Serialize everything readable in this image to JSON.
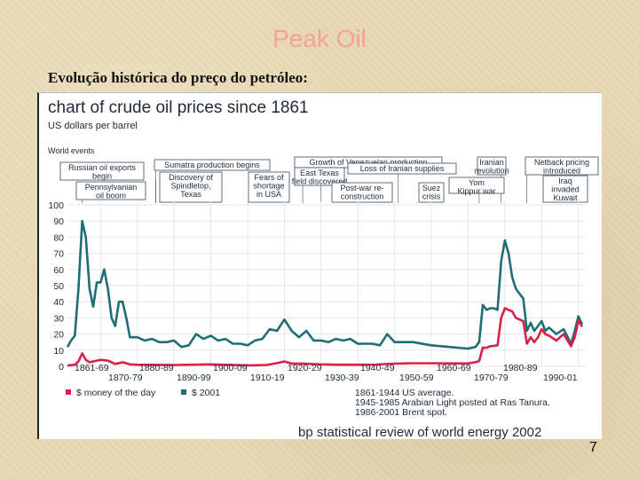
{
  "slide": {
    "title": "Peak Oil",
    "subtitle": "Evolução histórica do preço do petróleo:",
    "page_number": "7"
  },
  "chart_data": {
    "type": "line",
    "title": "chart of crude oil prices since 1861",
    "ylabel": "US dollars per barrel",
    "ylim": [
      0,
      100
    ],
    "yticks": [
      0,
      10,
      20,
      30,
      40,
      50,
      60,
      70,
      80,
      90,
      100
    ],
    "xlim": [
      1861,
      2002
    ],
    "events_label": "World events",
    "x_decade_labels_top": [
      "1861-69",
      "1880-89",
      "1900-09",
      "1920-29",
      "1940-49",
      "1960-69",
      "1980-89"
    ],
    "x_decade_labels_bottom": [
      "1870-79",
      "1890-99",
      "1910-19",
      "1930-39",
      "1950-59",
      "1970-79",
      "1990-01"
    ],
    "events": [
      {
        "label": "Russian oil exports\nbegin",
        "year": 1885
      },
      {
        "label": "Pennsylvanian\noil boom",
        "year": 1865
      },
      {
        "label": "Sumatra production begins",
        "year": 1885
      },
      {
        "label": "Discovery of\nSpindletop,\nTexas",
        "year": 1901
      },
      {
        "label": "Fears of\nshortage\nin USA",
        "year": 1918
      },
      {
        "label": "Growth of Venezuelan production",
        "year": 1925
      },
      {
        "label": "East Texas\nfield discovered",
        "year": 1930
      },
      {
        "label": "Loss of Iranian supplies",
        "year": 1951
      },
      {
        "label": "Post-war re-\nconstruction",
        "year": 1947
      },
      {
        "label": "Suez\ncrisis",
        "year": 1956
      },
      {
        "label": "Iranian\nrevolution",
        "year": 1979
      },
      {
        "label": "Yom\nKippur war",
        "year": 1973
      },
      {
        "label": "Netback pricing\nintroduced",
        "year": 1986
      },
      {
        "label": "Iraq\ninvaded\nKuwait",
        "year": 1990
      }
    ],
    "legend": [
      {
        "name": "$ money of the day",
        "color": "#d8204a"
      },
      {
        "name": "$ 2001",
        "color": "#1f6e73"
      }
    ],
    "notes": [
      "1861-1944 US average.",
      "1945-1985 Arabian Light posted at Ras Tanura.",
      "1986-2001 Brent spot."
    ],
    "source": "bp statistical review of world energy 2002",
    "series": [
      {
        "name": "$ 2001",
        "color": "#1f6e73",
        "x": [
          1861,
          1862,
          1863,
          1864,
          1865,
          1866,
          1867,
          1868,
          1869,
          1870,
          1871,
          1872,
          1873,
          1874,
          1875,
          1876,
          1877,
          1878,
          1879,
          1880,
          1882,
          1884,
          1886,
          1888,
          1890,
          1892,
          1894,
          1896,
          1898,
          1900,
          1902,
          1904,
          1906,
          1908,
          1910,
          1912,
          1914,
          1916,
          1918,
          1920,
          1922,
          1924,
          1926,
          1928,
          1930,
          1932,
          1934,
          1936,
          1938,
          1940,
          1942,
          1944,
          1946,
          1948,
          1950,
          1955,
          1960,
          1965,
          1970,
          1972,
          1973,
          1974,
          1975,
          1976,
          1977,
          1978,
          1979,
          1980,
          1981,
          1982,
          1983,
          1984,
          1985,
          1986,
          1987,
          1988,
          1989,
          1990,
          1991,
          1992,
          1994,
          1996,
          1998,
          1999,
          2000,
          2001
        ],
        "values": [
          12,
          16,
          19,
          48,
          90,
          80,
          48,
          37,
          52,
          52,
          60,
          48,
          30,
          25,
          40,
          40,
          30,
          18,
          18,
          18,
          16,
          17,
          15,
          15,
          16,
          12,
          13,
          20,
          17,
          19,
          16,
          17,
          14,
          14,
          13,
          16,
          17,
          23,
          22,
          29,
          22,
          18,
          22,
          16,
          16,
          15,
          17,
          16,
          17,
          14,
          14,
          14,
          13,
          20,
          15,
          15,
          13,
          12,
          11,
          12,
          15,
          38,
          35,
          36,
          36,
          35,
          65,
          78,
          70,
          55,
          48,
          45,
          42,
          22,
          27,
          22,
          25,
          28,
          22,
          24,
          20,
          23,
          14,
          22,
          31,
          26
        ]
      },
      {
        "name": "$ money of the day",
        "color": "#d8204a",
        "x": [
          1861,
          1863,
          1864,
          1865,
          1866,
          1867,
          1868,
          1870,
          1872,
          1874,
          1876,
          1878,
          1880,
          1890,
          1900,
          1910,
          1915,
          1918,
          1920,
          1922,
          1925,
          1930,
          1935,
          1940,
          1945,
          1950,
          1955,
          1960,
          1965,
          1970,
          1972,
          1973,
          1974,
          1975,
          1976,
          1977,
          1978,
          1979,
          1980,
          1981,
          1982,
          1983,
          1984,
          1985,
          1986,
          1987,
          1988,
          1989,
          1990,
          1991,
          1992,
          1994,
          1996,
          1998,
          1999,
          2000,
          2001
        ],
        "values": [
          0.5,
          1.0,
          3.0,
          8.0,
          4.0,
          2.5,
          3.0,
          4.0,
          3.5,
          1.5,
          2.5,
          1.2,
          1.0,
          0.8,
          1.2,
          0.6,
          0.8,
          2.0,
          3.0,
          1.7,
          1.7,
          1.2,
          1.0,
          1.0,
          1.1,
          1.7,
          1.9,
          1.9,
          1.8,
          1.8,
          2.5,
          3.3,
          11.6,
          11.5,
          12.5,
          12.7,
          13.0,
          30.0,
          36.0,
          35.0,
          34.0,
          30.0,
          29.0,
          28.0,
          14.0,
          18.0,
          15.0,
          18.0,
          23.0,
          20.0,
          19.0,
          16.0,
          20.0,
          12.5,
          18.0,
          28.5,
          24.5
        ]
      }
    ]
  }
}
